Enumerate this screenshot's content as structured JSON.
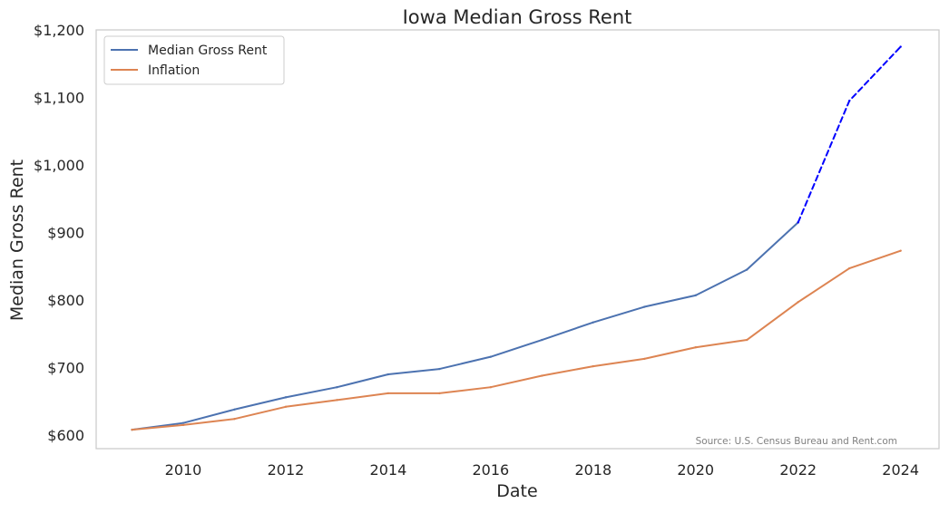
{
  "chart_data": {
    "type": "line",
    "title": "Iowa Median Gross Rent",
    "xlabel": "Date",
    "ylabel": "Median Gross Rent",
    "xlim": [
      2008.3,
      2024.75
    ],
    "ylim": [
      580,
      1200
    ],
    "x_ticks": [
      2010,
      2012,
      2014,
      2016,
      2018,
      2020,
      2022,
      2024
    ],
    "x_tick_labels": [
      "2010",
      "2012",
      "2014",
      "2016",
      "2018",
      "2020",
      "2022",
      "2024"
    ],
    "y_ticks": [
      600,
      700,
      800,
      900,
      1000,
      1100,
      1200
    ],
    "y_tick_labels": [
      "$600",
      "$700",
      "$800",
      "$900",
      "$1,000",
      "$1,100",
      "$1,200"
    ],
    "grid": false,
    "legend_position": "top-left",
    "annotation": "Source: U.S. Census Bureau and Rent.com",
    "series": [
      {
        "name": "Median Gross Rent",
        "color": "#4c72b0",
        "style": "solid",
        "x": [
          2009,
          2010,
          2011,
          2012,
          2013,
          2014,
          2015,
          2016,
          2017,
          2018,
          2019,
          2020,
          2021,
          2022
        ],
        "values": [
          608,
          618,
          638,
          656,
          671,
          690,
          698,
          716,
          741,
          767,
          790,
          807,
          845,
          915
        ]
      },
      {
        "name": "Inflation",
        "color": "#dd8452",
        "style": "solid",
        "x": [
          2009,
          2010,
          2011,
          2012,
          2013,
          2014,
          2015,
          2016,
          2017,
          2018,
          2019,
          2020,
          2021,
          2022,
          2023,
          2024
        ],
        "values": [
          608,
          615,
          624,
          642,
          652,
          662,
          662,
          671,
          688,
          702,
          713,
          730,
          741,
          797,
          847,
          873
        ]
      },
      {
        "color": "#0000ff",
        "style": "dashed",
        "x": [
          2022,
          2023,
          2024
        ],
        "values": [
          915,
          1095,
          1175
        ]
      }
    ]
  }
}
